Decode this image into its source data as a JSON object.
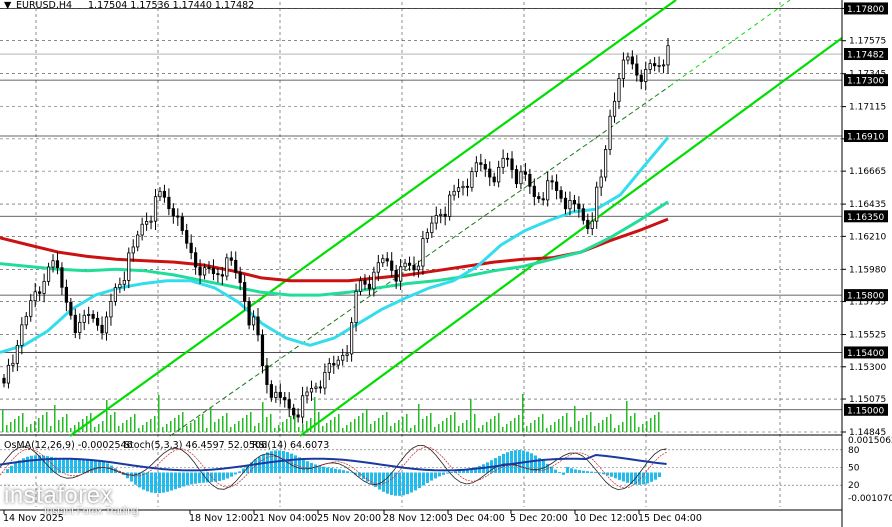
{
  "header": {
    "symbol": "EURUSD,H4",
    "values": "1.17504 1.17536 1.17440 1.17482"
  },
  "indicator_header": {
    "osma": "OsMA(12,26,9) -0.0002546",
    "stoch": "Stoch(5,3,3) 46.4597 52.0506",
    "rsi": "RSI(14) 64.6073"
  },
  "logo": {
    "name": "instaforex",
    "tagline": "Instant Forex Trading"
  },
  "colors": {
    "channel": "#00dd00",
    "ema_fast": "#33ddee",
    "ema_mid": "#22dd99",
    "ema_slow": "#cc1111",
    "candle": "#000000",
    "volume": "#22bb22",
    "osma_hist": "#22bbee",
    "stoch_main": "#1a3aa0",
    "tag_bg": "#000000"
  },
  "chart_data": {
    "type": "candlestick",
    "y_range": [
      1.14845,
      1.17845
    ],
    "price_ticks": [
      "1.17800",
      "1.17575",
      "1.17345",
      "1.17115",
      "1.16890",
      "1.16665",
      "1.16435",
      "1.16210",
      "1.15980",
      "1.15755",
      "1.15525",
      "1.15300",
      "1.15075",
      "1.14845"
    ],
    "level_tags": [
      "1.17800",
      "1.17300",
      "1.16910",
      "1.16350",
      "1.15800",
      "1.15400",
      "1.15000"
    ],
    "current_price": "1.17482",
    "x_labels": [
      "14 Nov 2025",
      "18 Nov 12:00",
      "21 Nov 04:00",
      "25 Nov 20:00",
      "28 Nov 12:00",
      "3 Dec 04:00",
      "5 Dec 20:00",
      "10 Dec 12:00",
      "15 Dec 04:00"
    ],
    "close_series": [
      1.153,
      1.157,
      1.158,
      1.161,
      1.1575,
      1.1555,
      1.1565,
      1.156,
      1.159,
      1.161,
      1.1635,
      1.165,
      1.164,
      1.1615,
      1.16,
      1.1595,
      1.16,
      1.159,
      1.156,
      1.152,
      1.1505,
      1.15,
      1.151,
      1.152,
      1.153,
      1.1545,
      1.159,
      1.159,
      1.1605,
      1.1595,
      1.16,
      1.162,
      1.164,
      1.165,
      1.166,
      1.167,
      1.1665,
      1.1675,
      1.166,
      1.165,
      1.1655,
      1.165,
      1.164,
      1.163,
      1.166,
      1.172,
      1.1745,
      1.1735,
      1.174,
      1.1748
    ],
    "ema_fast": [
      1.154,
      1.1545,
      1.1555,
      1.157,
      1.158,
      1.1585,
      1.1588,
      1.159,
      1.159,
      1.1585,
      1.1575,
      1.156,
      1.155,
      1.1545,
      1.155,
      1.156,
      1.157,
      1.1578,
      1.1585,
      1.159,
      1.16,
      1.1615,
      1.1625,
      1.1632,
      1.1638,
      1.164,
      1.165,
      1.167,
      1.169
    ],
    "ema_mid": [
      1.1602,
      1.16,
      1.1598,
      1.1597,
      1.1598,
      1.1597,
      1.1594,
      1.159,
      1.1586,
      1.1582,
      1.158,
      1.158,
      1.1582,
      1.1585,
      1.1588,
      1.159,
      1.1593,
      1.1597,
      1.16,
      1.1605,
      1.161,
      1.162,
      1.1632,
      1.1645
    ],
    "ema_slow": [
      1.162,
      1.1615,
      1.161,
      1.1607,
      1.1605,
      1.1604,
      1.1603,
      1.1601,
      1.1597,
      1.1592,
      1.159,
      1.159,
      1.159,
      1.1592,
      1.1594,
      1.1597,
      1.16,
      1.1603,
      1.1605,
      1.1606,
      1.161,
      1.1618,
      1.1625,
      1.1633
    ],
    "osma_range": [
      -0.0010707,
      0.0015062
    ],
    "osma_ticks": [
      "0.0015062",
      "-0.0010707"
    ],
    "stoch_levels": [
      80,
      50,
      20
    ],
    "channel": "ascending"
  }
}
